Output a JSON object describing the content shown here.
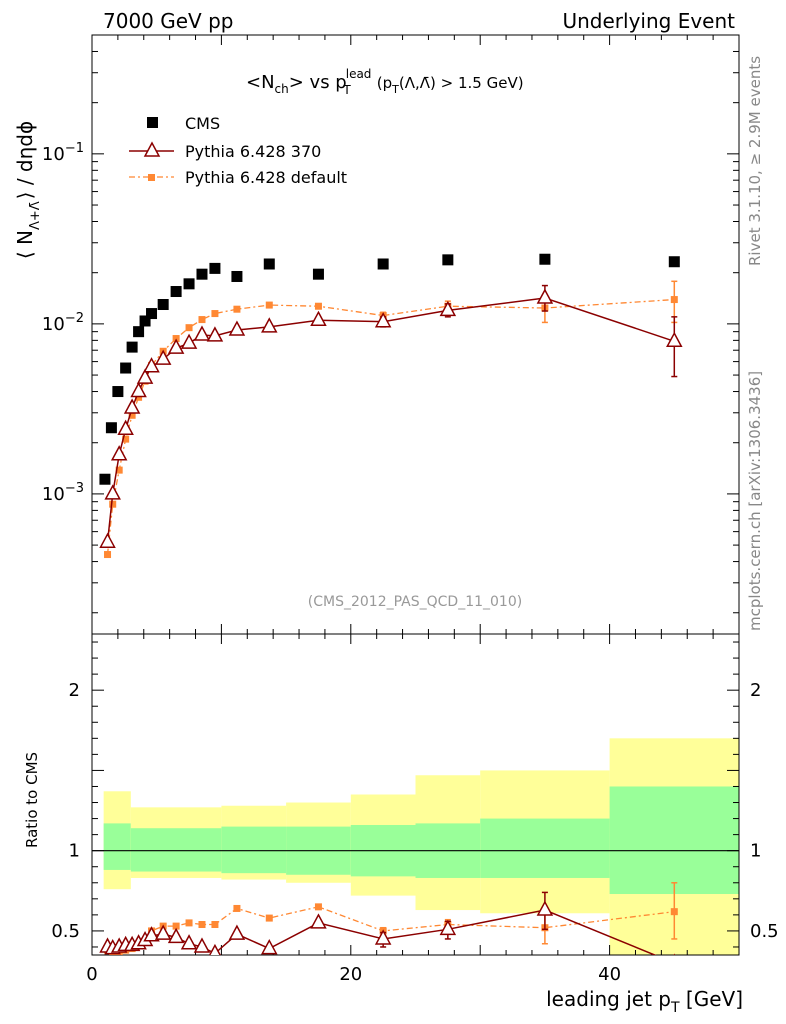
{
  "header": {
    "left": "7000 GeV pp",
    "right": "Underlying Event"
  },
  "side_labels": {
    "rivet": "Rivet 3.1.10, ≥ 2.9M events",
    "mcplots": "mcplots.cern.ch [arXiv:1306.3436]"
  },
  "watermark": "(CMS_2012_PAS_QCD_11_010)",
  "colors": {
    "cms": "#000000",
    "pythia370": "#8b0000",
    "pythia_default": "#ff8833",
    "band_inner": "#99ff99",
    "band_outer": "#ffff99"
  },
  "chart_data": [
    {
      "type": "scatter",
      "title": "<N_ch> vs p_T^lead (p_T(Λ,Λ̄) > 1.5 GeV)",
      "title_parts": {
        "a": "<N",
        "a_sub": "ch",
        "b": "> vs p",
        "b_sup": "lead",
        "b_sub": "T",
        "c": "(p",
        "c_sub": "T",
        "d": "(Λ,Λ̄) > 1.5 GeV)"
      },
      "ylabel": "⟨ N_{Λ+Λ̄} ⟩ / dηdϕ",
      "ylabel_parts": {
        "pre": "⟨ N",
        "sub": "Λ+Λ̄",
        "post": "⟩ / dηdϕ"
      },
      "yscale": "log",
      "ylim": [
        0.00015,
        0.5
      ],
      "xlim": [
        0,
        50
      ],
      "y_ticklabels": [
        {
          "value": 0.001,
          "base": "10",
          "exp": "−3"
        },
        {
          "value": 0.01,
          "base": "10",
          "exp": "−2"
        },
        {
          "value": 0.1,
          "base": "10",
          "exp": "−1"
        }
      ],
      "legend_position": "top-left",
      "series": [
        {
          "name": "CMS",
          "style": "square",
          "points": [
            {
              "x": 1.0,
              "y": 0.00122
            },
            {
              "x": 1.5,
              "y": 0.00245
            },
            {
              "x": 2.0,
              "y": 0.004
            },
            {
              "x": 2.6,
              "y": 0.0055
            },
            {
              "x": 3.1,
              "y": 0.0073
            },
            {
              "x": 3.6,
              "y": 0.009
            },
            {
              "x": 4.1,
              "y": 0.0104
            },
            {
              "x": 4.6,
              "y": 0.0115
            },
            {
              "x": 5.5,
              "y": 0.013
            },
            {
              "x": 6.5,
              "y": 0.0155
            },
            {
              "x": 7.5,
              "y": 0.0172
            },
            {
              "x": 8.5,
              "y": 0.0196
            },
            {
              "x": 9.5,
              "y": 0.0212
            },
            {
              "x": 11.2,
              "y": 0.019
            },
            {
              "x": 13.7,
              "y": 0.0225
            },
            {
              "x": 17.5,
              "y": 0.0196
            },
            {
              "x": 22.5,
              "y": 0.0225
            },
            {
              "x": 27.5,
              "y": 0.0238
            },
            {
              "x": 35,
              "y": 0.024
            },
            {
              "x": 45,
              "y": 0.0232
            }
          ]
        },
        {
          "name": "Pythia 6.428 370",
          "style": "triangle-line",
          "points": [
            {
              "x": 1.2,
              "y": 0.00052
            },
            {
              "x": 1.6,
              "y": 0.001
            },
            {
              "x": 2.1,
              "y": 0.0017
            },
            {
              "x": 2.6,
              "y": 0.0024
            },
            {
              "x": 3.1,
              "y": 0.0032
            },
            {
              "x": 3.6,
              "y": 0.004
            },
            {
              "x": 4.1,
              "y": 0.0048
            },
            {
              "x": 4.6,
              "y": 0.0056
            },
            {
              "x": 5.5,
              "y": 0.0062
            },
            {
              "x": 6.5,
              "y": 0.0072
            },
            {
              "x": 7.5,
              "y": 0.0077
            },
            {
              "x": 8.5,
              "y": 0.0086
            },
            {
              "x": 9.5,
              "y": 0.0085
            },
            {
              "x": 11.2,
              "y": 0.0092
            },
            {
              "x": 13.7,
              "y": 0.0096
            },
            {
              "x": 17.5,
              "y": 0.0105
            },
            {
              "x": 22.5,
              "y": 0.0103,
              "err": [
                0.0096,
                0.011
              ]
            },
            {
              "x": 27.5,
              "y": 0.012,
              "err": [
                0.011,
                0.0131
              ]
            },
            {
              "x": 35,
              "y": 0.0142,
              "err": [
                0.0119,
                0.0168
              ]
            },
            {
              "x": 45,
              "y": 0.0079,
              "err": [
                0.0049,
                0.011
              ]
            }
          ]
        },
        {
          "name": "Pythia 6.428 default",
          "style": "small-square-dashdot",
          "points": [
            {
              "x": 1.2,
              "y": 0.00044
            },
            {
              "x": 1.6,
              "y": 0.00087
            },
            {
              "x": 2.1,
              "y": 0.00138
            },
            {
              "x": 2.6,
              "y": 0.0021
            },
            {
              "x": 3.1,
              "y": 0.0029
            },
            {
              "x": 3.6,
              "y": 0.0037
            },
            {
              "x": 4.1,
              "y": 0.0046
            },
            {
              "x": 4.6,
              "y": 0.0057
            },
            {
              "x": 5.5,
              "y": 0.0069
            },
            {
              "x": 6.5,
              "y": 0.0082
            },
            {
              "x": 7.5,
              "y": 0.0095
            },
            {
              "x": 8.5,
              "y": 0.0106
            },
            {
              "x": 9.5,
              "y": 0.0115
            },
            {
              "x": 11.2,
              "y": 0.0122
            },
            {
              "x": 13.7,
              "y": 0.0129
            },
            {
              "x": 17.5,
              "y": 0.0127
            },
            {
              "x": 22.5,
              "y": 0.0112,
              "err": [
                0.0107,
                0.0117
              ]
            },
            {
              "x": 27.5,
              "y": 0.0127,
              "err": [
                0.0117,
                0.0136
              ]
            },
            {
              "x": 35,
              "y": 0.0124,
              "err": [
                0.0102,
                0.0148
              ]
            },
            {
              "x": 45,
              "y": 0.0139,
              "err": [
                0.0102,
                0.0178
              ]
            }
          ]
        }
      ]
    },
    {
      "type": "scatter",
      "ylabel": "Ratio to CMS",
      "xlabel": "leading jet p_T [GeV]",
      "xlabel_parts": {
        "pre": "leading jet p",
        "sub": "T",
        "post": " [GeV]"
      },
      "xlim": [
        0,
        50
      ],
      "ylim": [
        0.35,
        2.35
      ],
      "x_ticklabels": [
        "0",
        "20",
        "40"
      ],
      "x_ticks": [
        0,
        20,
        40
      ],
      "y_ticklabels": [
        "0.5",
        "1",
        "2"
      ],
      "y_ticks": [
        0.5,
        1,
        2
      ],
      "reference_line": 1,
      "bands": [
        {
          "x0": 0.9,
          "x1": 3,
          "inner": [
            0.88,
            1.17
          ],
          "outer": [
            0.76,
            1.37
          ]
        },
        {
          "x0": 3,
          "x1": 10,
          "inner": [
            0.87,
            1.14
          ],
          "outer": [
            0.83,
            1.27
          ]
        },
        {
          "x0": 10,
          "x1": 15,
          "inner": [
            0.86,
            1.15
          ],
          "outer": [
            0.82,
            1.28
          ]
        },
        {
          "x0": 15,
          "x1": 20,
          "inner": [
            0.85,
            1.15
          ],
          "outer": [
            0.8,
            1.3
          ]
        },
        {
          "x0": 20,
          "x1": 25,
          "inner": [
            0.84,
            1.16
          ],
          "outer": [
            0.72,
            1.35
          ]
        },
        {
          "x0": 25,
          "x1": 30,
          "inner": [
            0.83,
            1.17
          ],
          "outer": [
            0.63,
            1.47
          ]
        },
        {
          "x0": 30,
          "x1": 40,
          "inner": [
            0.83,
            1.2
          ],
          "outer": [
            0.61,
            1.5
          ]
        },
        {
          "x0": 40,
          "x1": 50,
          "inner": [
            0.73,
            1.4
          ],
          "outer": [
            0.35,
            1.7
          ]
        }
      ],
      "series": [
        {
          "name": "Pythia 6.428 370",
          "style": "triangle-line",
          "points": [
            {
              "x": 1.2,
              "y": 0.4
            },
            {
              "x": 1.6,
              "y": 0.39
            },
            {
              "x": 2.1,
              "y": 0.4
            },
            {
              "x": 2.6,
              "y": 0.41
            },
            {
              "x": 3.1,
              "y": 0.41
            },
            {
              "x": 3.6,
              "y": 0.42
            },
            {
              "x": 4.1,
              "y": 0.44
            },
            {
              "x": 4.6,
              "y": 0.47
            },
            {
              "x": 5.5,
              "y": 0.48
            },
            {
              "x": 6.5,
              "y": 0.46
            },
            {
              "x": 7.5,
              "y": 0.42
            },
            {
              "x": 8.5,
              "y": 0.4
            },
            {
              "x": 9.5,
              "y": 0.36
            },
            {
              "x": 11.2,
              "y": 0.48
            },
            {
              "x": 13.7,
              "y": 0.39
            },
            {
              "x": 17.5,
              "y": 0.55
            },
            {
              "x": 22.5,
              "y": 0.45,
              "err": [
                0.4,
                0.49
              ]
            },
            {
              "x": 27.5,
              "y": 0.51,
              "err": [
                0.45,
                0.56
              ]
            },
            {
              "x": 35,
              "y": 0.63,
              "err": [
                0.51,
                0.74
              ]
            },
            {
              "x": 45,
              "y": 0.3
            }
          ]
        },
        {
          "name": "Pythia 6.428 default",
          "style": "small-square-dashdot",
          "points": [
            {
              "x": 1.2,
              "y": 0.38
            },
            {
              "x": 1.6,
              "y": 0.36
            },
            {
              "x": 2.1,
              "y": 0.37
            },
            {
              "x": 2.6,
              "y": 0.38
            },
            {
              "x": 3.1,
              "y": 0.39
            },
            {
              "x": 3.6,
              "y": 0.41
            },
            {
              "x": 4.1,
              "y": 0.44
            },
            {
              "x": 4.6,
              "y": 0.5
            },
            {
              "x": 5.5,
              "y": 0.53
            },
            {
              "x": 6.5,
              "y": 0.53
            },
            {
              "x": 7.5,
              "y": 0.55
            },
            {
              "x": 8.5,
              "y": 0.54
            },
            {
              "x": 9.5,
              "y": 0.54
            },
            {
              "x": 11.2,
              "y": 0.64
            },
            {
              "x": 13.7,
              "y": 0.58
            },
            {
              "x": 17.5,
              "y": 0.65
            },
            {
              "x": 22.5,
              "y": 0.5,
              "err": [
                0.47,
                0.52
              ]
            },
            {
              "x": 27.5,
              "y": 0.54,
              "err": [
                0.49,
                0.57
              ]
            },
            {
              "x": 35,
              "y": 0.52,
              "err": [
                0.42,
                0.62
              ]
            },
            {
              "x": 45,
              "y": 0.62,
              "err": [
                0.45,
                0.8
              ]
            }
          ]
        }
      ]
    }
  ]
}
